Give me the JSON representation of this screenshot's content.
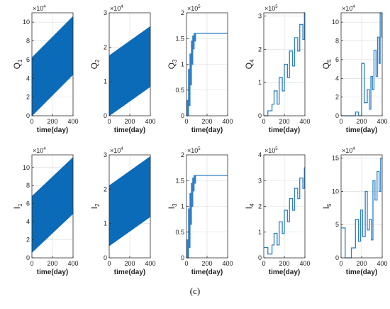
{
  "caption": "(c)",
  "colors": {
    "series": "#2f80c8",
    "fill": "#0b6bb8",
    "grid": "#d9d9d9",
    "axis": "#333333"
  },
  "chart_data": [
    {
      "id": "Q1",
      "type": "area",
      "ylabel_main": "Q",
      "ylabel_sub": "1",
      "xlabel": "time(day)",
      "xlim": [
        0,
        400
      ],
      "ylim": [
        0,
        11
      ],
      "xticks": [
        "0",
        "200",
        "400"
      ],
      "yticks": [
        0,
        2,
        4,
        6,
        8,
        10
      ],
      "multiplier_base": "×10",
      "multiplier_exp": "4",
      "band_lower": [
        [
          0,
          0
        ],
        [
          400,
          4.4
        ]
      ],
      "band_upper": [
        [
          0,
          6.2
        ],
        [
          400,
          10.6
        ]
      ]
    },
    {
      "id": "Q2",
      "type": "area",
      "ylabel_main": "Q",
      "ylabel_sub": "2",
      "xlabel": "time(day)",
      "xlim": [
        0,
        400
      ],
      "ylim": [
        0,
        3
      ],
      "xticks": [
        "0",
        "200",
        "400"
      ],
      "yticks": [
        0,
        1,
        2,
        3
      ],
      "multiplier_base": "×10",
      "multiplier_exp": "4",
      "band_lower": [
        [
          0,
          0
        ],
        [
          400,
          0.85
        ]
      ],
      "band_upper": [
        [
          0,
          1.75
        ],
        [
          400,
          2.6
        ]
      ]
    },
    {
      "id": "Q3",
      "type": "line",
      "ylabel_main": "Q",
      "ylabel_sub": "3",
      "xlabel": "time(day)",
      "xlim": [
        0,
        400
      ],
      "ylim": [
        0,
        2
      ],
      "xticks": [
        "0",
        "200",
        "400"
      ],
      "yticks": [
        0,
        0.5,
        1,
        1.5,
        2
      ],
      "multiplier_base": "×10",
      "multiplier_exp": "5",
      "points": [
        [
          0,
          0
        ],
        [
          6,
          0
        ],
        [
          6,
          0.3
        ],
        [
          14,
          0.3
        ],
        [
          14,
          0
        ],
        [
          20,
          0
        ],
        [
          20,
          0.9
        ],
        [
          28,
          0.9
        ],
        [
          28,
          0.2
        ],
        [
          34,
          0.2
        ],
        [
          34,
          1.2
        ],
        [
          42,
          1.2
        ],
        [
          42,
          0.6
        ],
        [
          48,
          0.6
        ],
        [
          48,
          1.45
        ],
        [
          55,
          1.45
        ],
        [
          55,
          1.0
        ],
        [
          61,
          1.0
        ],
        [
          61,
          1.55
        ],
        [
          68,
          1.55
        ],
        [
          68,
          1.3
        ],
        [
          74,
          1.3
        ],
        [
          74,
          1.6
        ],
        [
          82,
          1.6
        ],
        [
          82,
          1.45
        ],
        [
          88,
          1.45
        ],
        [
          88,
          1.6
        ],
        [
          400,
          1.6
        ]
      ]
    },
    {
      "id": "Q4",
      "type": "line",
      "ylabel_main": "Q",
      "ylabel_sub": "4",
      "xlabel": "time(day)",
      "xlim": [
        0,
        400
      ],
      "ylim": [
        0,
        3.1
      ],
      "xticks": [
        "0",
        "200",
        "400"
      ],
      "yticks": [
        0,
        1,
        2,
        3
      ],
      "multiplier_base": "×10",
      "multiplier_exp": "5",
      "points": [
        [
          0,
          0
        ],
        [
          40,
          0
        ],
        [
          40,
          0.15
        ],
        [
          80,
          0.15
        ],
        [
          80,
          0.35
        ],
        [
          100,
          0.35
        ],
        [
          100,
          0.75
        ],
        [
          130,
          0.75
        ],
        [
          130,
          0.35
        ],
        [
          150,
          0.35
        ],
        [
          150,
          1.15
        ],
        [
          180,
          1.15
        ],
        [
          180,
          0.75
        ],
        [
          200,
          0.75
        ],
        [
          200,
          1.55
        ],
        [
          230,
          1.55
        ],
        [
          230,
          1.15
        ],
        [
          250,
          1.15
        ],
        [
          250,
          1.95
        ],
        [
          280,
          1.95
        ],
        [
          280,
          1.5
        ],
        [
          300,
          1.5
        ],
        [
          300,
          2.35
        ],
        [
          330,
          2.35
        ],
        [
          330,
          1.95
        ],
        [
          350,
          1.95
        ],
        [
          350,
          2.75
        ],
        [
          380,
          2.75
        ],
        [
          380,
          2.3
        ],
        [
          395,
          2.3
        ],
        [
          395,
          3.1
        ],
        [
          400,
          3.1
        ]
      ]
    },
    {
      "id": "Q5",
      "type": "line",
      "ylabel_main": "Q",
      "ylabel_sub": "5",
      "xlabel": "time(day)",
      "xlim": [
        0,
        400
      ],
      "ylim": [
        0,
        11
      ],
      "xticks": [
        "0",
        "200",
        "400"
      ],
      "yticks": [
        0,
        2,
        4,
        6,
        8,
        10
      ],
      "multiplier_base": "×10",
      "multiplier_exp": "4",
      "points": [
        [
          0,
          0
        ],
        [
          140,
          0
        ],
        [
          140,
          0.4
        ],
        [
          170,
          0.4
        ],
        [
          170,
          0
        ],
        [
          200,
          0
        ],
        [
          200,
          5.6
        ],
        [
          225,
          5.6
        ],
        [
          225,
          1.4
        ],
        [
          255,
          1.4
        ],
        [
          255,
          2.8
        ],
        [
          275,
          2.8
        ],
        [
          275,
          0.7
        ],
        [
          290,
          0.7
        ],
        [
          290,
          4.2
        ],
        [
          305,
          4.2
        ],
        [
          305,
          2.8
        ],
        [
          320,
          2.8
        ],
        [
          320,
          7.0
        ],
        [
          340,
          7.0
        ],
        [
          340,
          4.2
        ],
        [
          355,
          4.2
        ],
        [
          355,
          8.4
        ],
        [
          370,
          8.4
        ],
        [
          370,
          5.6
        ],
        [
          380,
          5.6
        ],
        [
          380,
          11
        ],
        [
          395,
          11
        ],
        [
          395,
          8.4
        ],
        [
          400,
          8.4
        ]
      ]
    },
    {
      "id": "I1",
      "type": "area",
      "ylabel_main": "I",
      "ylabel_sub": "1",
      "xlabel": "time(day)",
      "xlim": [
        0,
        400
      ],
      "ylim": [
        0,
        11.4
      ],
      "xticks": [
        "0",
        "200",
        "400"
      ],
      "yticks": [
        0,
        2,
        4,
        6,
        8,
        10
      ],
      "multiplier_base": "×10",
      "multiplier_exp": "4",
      "band_lower": [
        [
          0,
          0.6
        ],
        [
          400,
          4.9
        ]
      ],
      "band_upper": [
        [
          0,
          6.8
        ],
        [
          400,
          11.1
        ]
      ]
    },
    {
      "id": "I2",
      "type": "area",
      "ylabel_main": "I",
      "ylabel_sub": "2",
      "xlabel": "time(day)",
      "xlim": [
        0,
        400
      ],
      "ylim": [
        0,
        3
      ],
      "xticks": [
        "0",
        "200",
        "400"
      ],
      "yticks": [
        0,
        1,
        2,
        3
      ],
      "multiplier_base": "×10",
      "multiplier_exp": "4",
      "band_lower": [
        [
          0,
          0.35
        ],
        [
          400,
          1.2
        ]
      ],
      "band_upper": [
        [
          0,
          2.1
        ],
        [
          400,
          2.95
        ]
      ]
    },
    {
      "id": "I3",
      "type": "line",
      "ylabel_main": "I",
      "ylabel_sub": "3",
      "xlabel": "time(day)",
      "xlim": [
        0,
        400
      ],
      "ylim": [
        0,
        2
      ],
      "xticks": [
        "0",
        "200",
        "400"
      ],
      "yticks": [
        0,
        0.5,
        1,
        1.5,
        2
      ],
      "multiplier_base": "×10",
      "multiplier_exp": "5",
      "points": [
        [
          0,
          0
        ],
        [
          6,
          0
        ],
        [
          6,
          0.35
        ],
        [
          14,
          0.35
        ],
        [
          14,
          0
        ],
        [
          20,
          0
        ],
        [
          20,
          0.95
        ],
        [
          28,
          0.95
        ],
        [
          28,
          0.2
        ],
        [
          34,
          0.2
        ],
        [
          34,
          1.25
        ],
        [
          42,
          1.25
        ],
        [
          42,
          0.65
        ],
        [
          48,
          0.65
        ],
        [
          48,
          1.45
        ],
        [
          55,
          1.45
        ],
        [
          55,
          1.0
        ],
        [
          61,
          1.0
        ],
        [
          61,
          1.55
        ],
        [
          68,
          1.55
        ],
        [
          68,
          1.3
        ],
        [
          74,
          1.3
        ],
        [
          74,
          1.6
        ],
        [
          82,
          1.6
        ],
        [
          82,
          1.45
        ],
        [
          88,
          1.45
        ],
        [
          88,
          1.6
        ],
        [
          400,
          1.6
        ]
      ]
    },
    {
      "id": "I4",
      "type": "line",
      "ylabel_main": "I",
      "ylabel_sub": "4",
      "xlabel": "time(day)",
      "xlim": [
        0,
        400
      ],
      "ylim": [
        0,
        4
      ],
      "xticks": [
        "0",
        "200",
        "400"
      ],
      "yticks": [
        0,
        1,
        2,
        3,
        4
      ],
      "multiplier_base": "×10",
      "multiplier_exp": "5",
      "points": [
        [
          0,
          0.4
        ],
        [
          40,
          0.4
        ],
        [
          40,
          0.15
        ],
        [
          80,
          0.15
        ],
        [
          80,
          0.5
        ],
        [
          100,
          0.5
        ],
        [
          100,
          0.95
        ],
        [
          130,
          0.95
        ],
        [
          130,
          0.5
        ],
        [
          150,
          0.5
        ],
        [
          150,
          1.4
        ],
        [
          180,
          1.4
        ],
        [
          180,
          0.95
        ],
        [
          200,
          0.95
        ],
        [
          200,
          1.85
        ],
        [
          230,
          1.85
        ],
        [
          230,
          1.4
        ],
        [
          250,
          1.4
        ],
        [
          250,
          2.3
        ],
        [
          280,
          2.3
        ],
        [
          280,
          1.85
        ],
        [
          300,
          1.85
        ],
        [
          300,
          2.7
        ],
        [
          330,
          2.7
        ],
        [
          330,
          2.3
        ],
        [
          350,
          2.3
        ],
        [
          350,
          3.1
        ],
        [
          380,
          3.1
        ],
        [
          380,
          2.7
        ],
        [
          395,
          2.7
        ],
        [
          395,
          3.5
        ],
        [
          400,
          3.5
        ]
      ]
    },
    {
      "id": "I5",
      "type": "line",
      "ylabel_main": "I",
      "ylabel_sub": "5",
      "xlabel": "time(day)",
      "xlim": [
        0,
        400
      ],
      "ylim": [
        0,
        15.5
      ],
      "xticks": [
        "0",
        "200",
        "400"
      ],
      "yticks": [
        0,
        5,
        10,
        15
      ],
      "multiplier_base": "×10",
      "multiplier_exp": "4",
      "points": [
        [
          0,
          4.5
        ],
        [
          40,
          4.5
        ],
        [
          40,
          0
        ],
        [
          100,
          0
        ],
        [
          100,
          1.5
        ],
        [
          140,
          1.5
        ],
        [
          140,
          5.8
        ],
        [
          170,
          5.8
        ],
        [
          170,
          2.5
        ],
        [
          190,
          2.5
        ],
        [
          190,
          7.2
        ],
        [
          210,
          7.2
        ],
        [
          210,
          3.2
        ],
        [
          235,
          3.2
        ],
        [
          235,
          10
        ],
        [
          255,
          10
        ],
        [
          255,
          4.2
        ],
        [
          275,
          4.2
        ],
        [
          275,
          5.8
        ],
        [
          295,
          5.8
        ],
        [
          295,
          2.7
        ],
        [
          310,
          2.7
        ],
        [
          310,
          11.6
        ],
        [
          330,
          11.6
        ],
        [
          330,
          8.7
        ],
        [
          350,
          8.7
        ],
        [
          350,
          13
        ],
        [
          370,
          13
        ],
        [
          370,
          10
        ],
        [
          385,
          10
        ],
        [
          385,
          15
        ],
        [
          400,
          15
        ]
      ]
    }
  ]
}
